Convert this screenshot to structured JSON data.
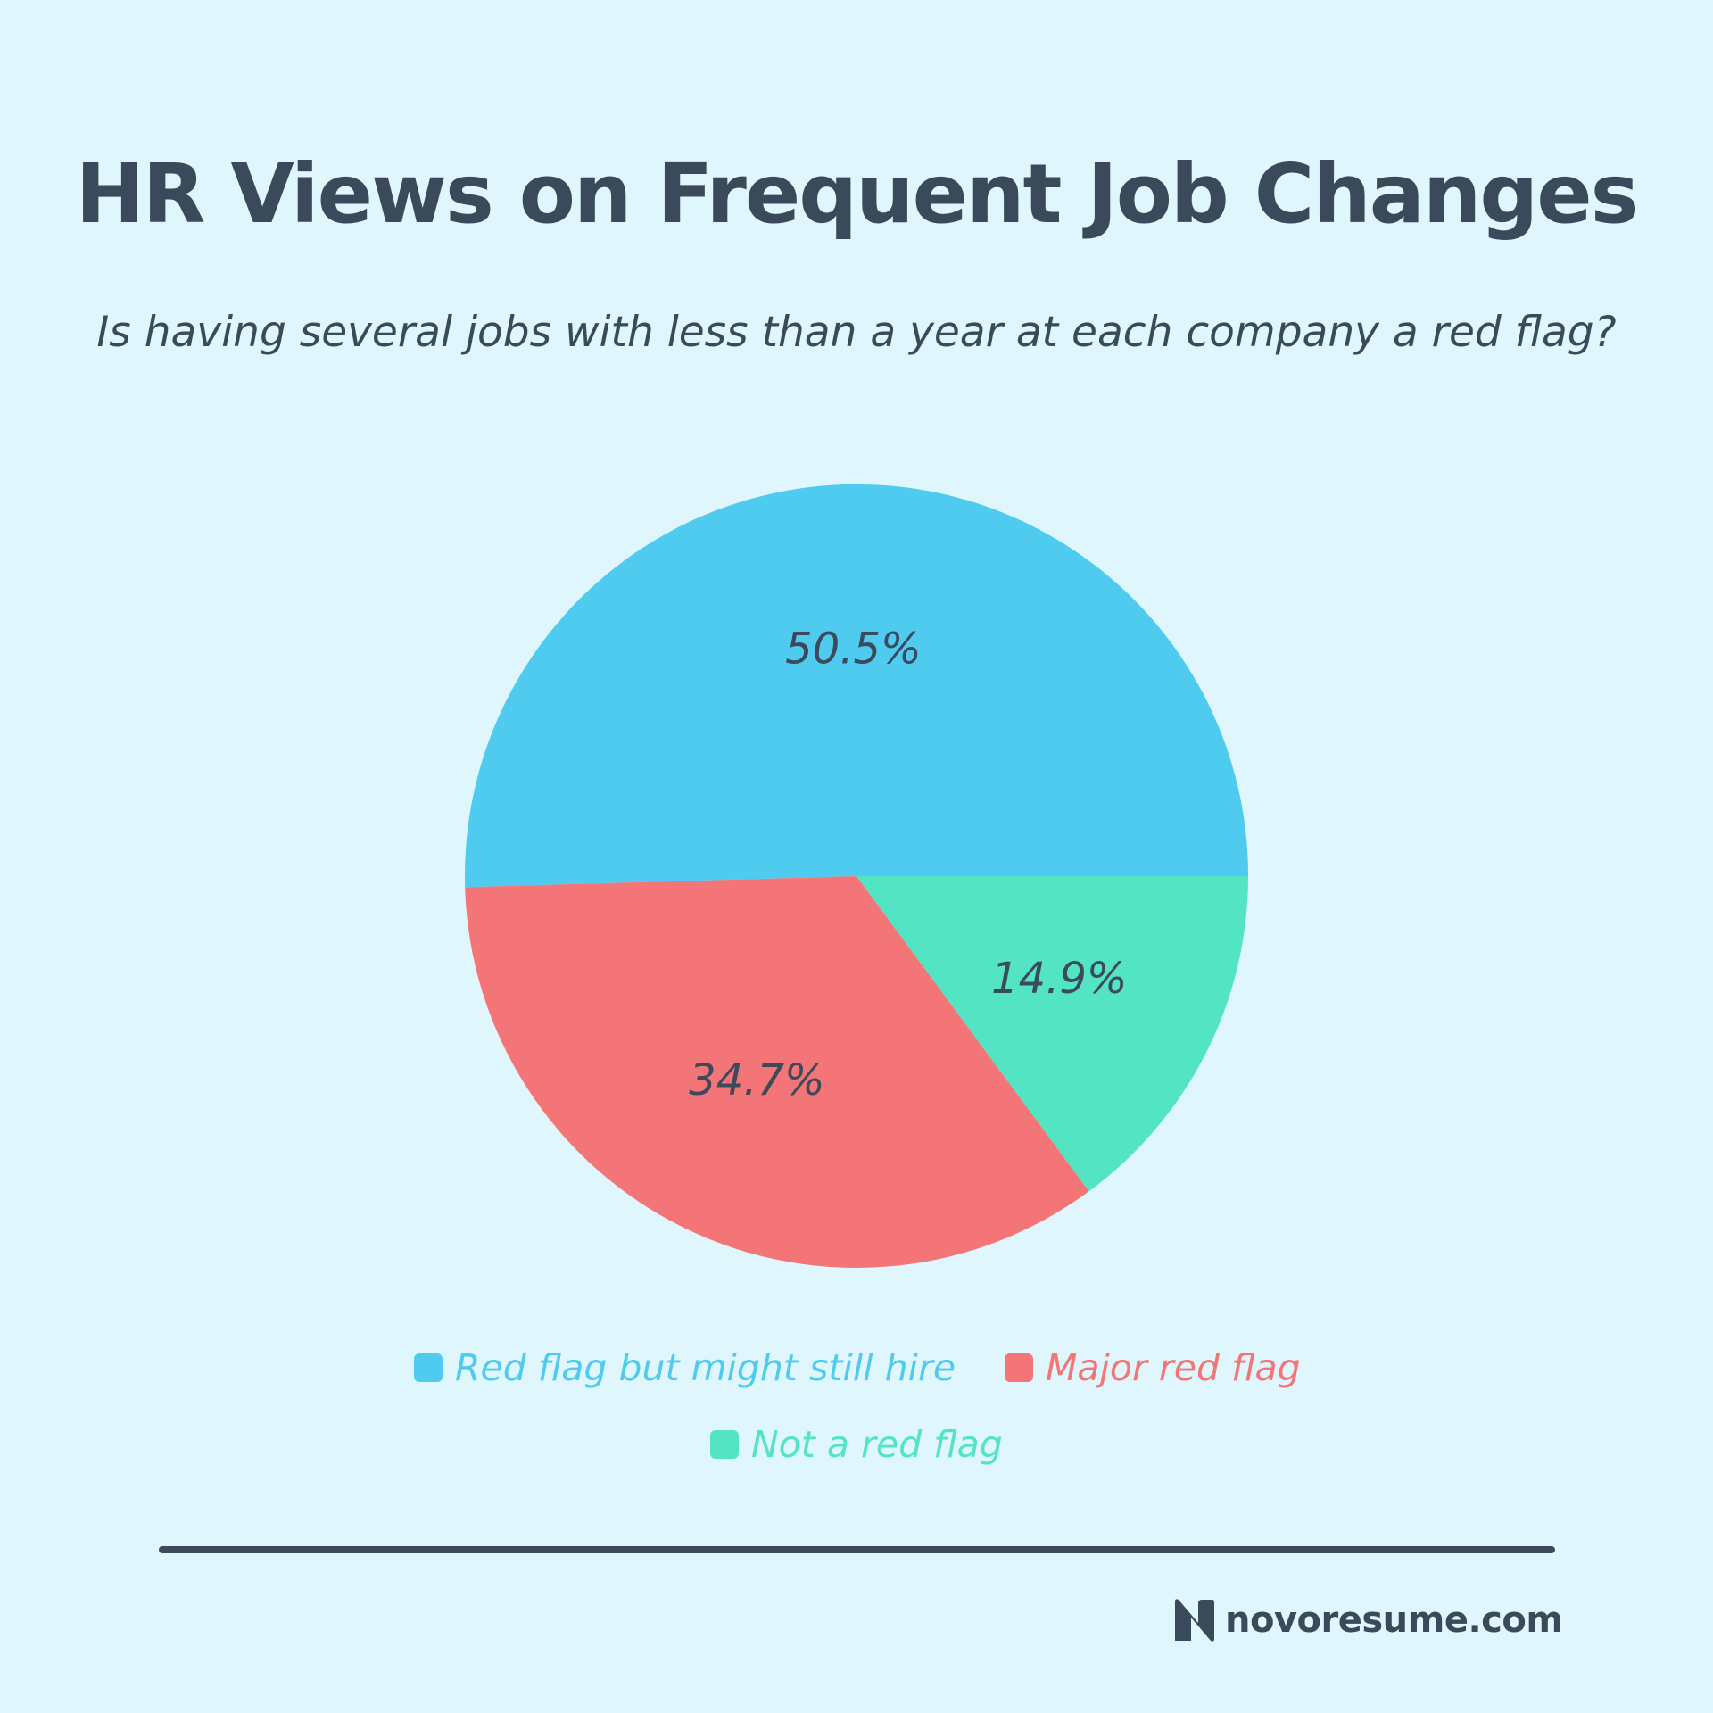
{
  "chart_data": {
    "type": "pie",
    "title": "HR Views on Frequent Job Changes",
    "subtitle": "Is having several jobs with less than a year at each company a red flag?",
    "categories": [
      "Red flag but might still hire",
      "Major red flag",
      "Not a red flag"
    ],
    "values": [
      50.5,
      34.7,
      14.9
    ],
    "data_labels": [
      "50.5%",
      "34.7%",
      "14.9%"
    ],
    "colors": [
      "#4ecbee",
      "#f47577",
      "#52e4c3"
    ],
    "legend_placement": "bottom",
    "start": "3 o'clock",
    "direction": "counterclockwise"
  },
  "legend": {
    "items": [
      {
        "label": "Red flag but might still hire",
        "color": "#4ecbee"
      },
      {
        "label": "Major red flag",
        "color": "#f47577"
      },
      {
        "label": "Not a red flag",
        "color": "#52e4c3"
      }
    ]
  },
  "footer": {
    "logo_icon": "novoresume-n-logo",
    "brand": "novoresume.com"
  },
  "colors": {
    "background": "#dff6fc",
    "text": "#3b4a5a",
    "label_text": "#3d4a5c"
  }
}
